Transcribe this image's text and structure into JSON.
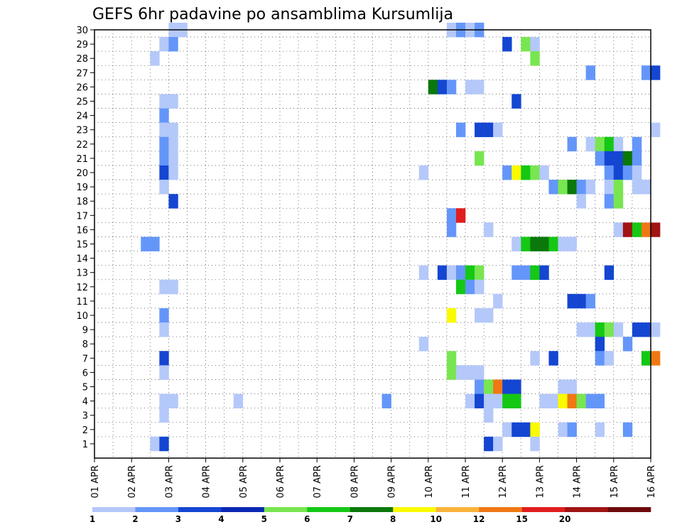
{
  "chart_data": {
    "type": "heatmap",
    "title": "GEFS 6hr padavine po ansamblima Kursumlija",
    "xlabel": "",
    "ylabel": "",
    "x_tick_labels": [
      "01 APR",
      "02 APR",
      "03 APR",
      "04 APR",
      "05 APR",
      "06 APR",
      "07 APR",
      "08 APR",
      "09 APR",
      "10 APR",
      "11 APR",
      "12 APR",
      "13 APR",
      "14 APR",
      "15 APR",
      "16 APR"
    ],
    "x_range_days": [
      1,
      16
    ],
    "x_step_days": 0.25,
    "y_range": [
      0,
      30
    ],
    "y_tick_labels": [
      1,
      2,
      3,
      4,
      5,
      6,
      7,
      8,
      9,
      10,
      11,
      12,
      13,
      14,
      15,
      16,
      17,
      18,
      19,
      20,
      21,
      22,
      23,
      24,
      25,
      26,
      27,
      28,
      29,
      30
    ],
    "grid": "dotted",
    "legend": {
      "position": "bottom",
      "labels": [
        "1",
        "2",
        "3",
        "4",
        "5",
        "6",
        "7",
        "8",
        "10",
        "12",
        "15",
        "20"
      ],
      "colors": [
        "#b4c8fa",
        "#6496fa",
        "#1446d2",
        "#0a28b4",
        "#78e650",
        "#14c814",
        "#0a780a",
        "#fafa00",
        "#fab43c",
        "#f07814",
        "#e11e1e",
        "#a01414",
        "#6e0a0a"
      ]
    },
    "cells": [
      [
        "03 APR 00",
        30,
        "c1"
      ],
      [
        "03 APR 06",
        30,
        "c1"
      ],
      [
        "10 APR 12",
        30,
        "c1"
      ],
      [
        "10 APR 18",
        30,
        "c2"
      ],
      [
        "11 APR 00",
        30,
        "c1"
      ],
      [
        "11 APR 06",
        30,
        "c2"
      ],
      [
        "02 APR 18",
        29,
        "c1"
      ],
      [
        "03 APR 00",
        29,
        "c2"
      ],
      [
        "12 APR 00",
        29,
        "c3"
      ],
      [
        "12 APR 12",
        29,
        "c5"
      ],
      [
        "12 APR 18",
        29,
        "c1"
      ],
      [
        "02 APR 12",
        28,
        "c1"
      ],
      [
        "12 APR 18",
        28,
        "c5"
      ],
      [
        "14 APR 06",
        27,
        "c2"
      ],
      [
        "15 APR 18",
        27,
        "c2"
      ],
      [
        "16 APR 00",
        27,
        "c3"
      ],
      [
        "10 APR 00",
        26,
        "c7"
      ],
      [
        "10 APR 06",
        26,
        "c3"
      ],
      [
        "10 APR 12",
        26,
        "c2"
      ],
      [
        "11 APR 00",
        26,
        "c1"
      ],
      [
        "11 APR 06",
        26,
        "c1"
      ],
      [
        "02 APR 18",
        25,
        "c1"
      ],
      [
        "03 APR 00",
        25,
        "c1"
      ],
      [
        "12 APR 06",
        25,
        "c3"
      ],
      [
        "02 APR 18",
        24,
        "c2"
      ],
      [
        "02 APR 18",
        23,
        "c1"
      ],
      [
        "03 APR 00",
        23,
        "c1"
      ],
      [
        "10 APR 18",
        23,
        "c2"
      ],
      [
        "11 APR 06",
        23,
        "c3"
      ],
      [
        "11 APR 12",
        23,
        "c3"
      ],
      [
        "11 APR 18",
        23,
        "c1"
      ],
      [
        "16 APR 00",
        23,
        "c1"
      ],
      [
        "02 APR 18",
        22,
        "c2"
      ],
      [
        "03 APR 00",
        22,
        "c1"
      ],
      [
        "13 APR 18",
        22,
        "c2"
      ],
      [
        "14 APR 06",
        22,
        "c1"
      ],
      [
        "14 APR 12",
        22,
        "c5"
      ],
      [
        "14 APR 18",
        22,
        "c6"
      ],
      [
        "15 APR 00",
        22,
        "c1"
      ],
      [
        "15 APR 12",
        22,
        "c2"
      ],
      [
        "02 APR 18",
        21,
        "c2"
      ],
      [
        "03 APR 00",
        21,
        "c1"
      ],
      [
        "11 APR 06",
        21,
        "c5"
      ],
      [
        "14 APR 12",
        21,
        "c2"
      ],
      [
        "14 APR 18",
        21,
        "c3"
      ],
      [
        "15 APR 00",
        21,
        "c3"
      ],
      [
        "15 APR 06",
        21,
        "c7"
      ],
      [
        "15 APR 12",
        21,
        "c2"
      ],
      [
        "02 APR 18",
        20,
        "c3"
      ],
      [
        "03 APR 00",
        20,
        "c1"
      ],
      [
        "09 APR 18",
        20,
        "c1"
      ],
      [
        "12 APR 00",
        20,
        "c2"
      ],
      [
        "12 APR 06",
        20,
        "c8"
      ],
      [
        "12 APR 12",
        20,
        "c6"
      ],
      [
        "12 APR 18",
        20,
        "c5"
      ],
      [
        "13 APR 00",
        20,
        "c1"
      ],
      [
        "14 APR 18",
        20,
        "c2"
      ],
      [
        "15 APR 00",
        20,
        "c3"
      ],
      [
        "15 APR 06",
        20,
        "c2"
      ],
      [
        "15 APR 12",
        20,
        "c1"
      ],
      [
        "02 APR 18",
        19,
        "c1"
      ],
      [
        "13 APR 06",
        19,
        "c2"
      ],
      [
        "13 APR 12",
        19,
        "c5"
      ],
      [
        "13 APR 18",
        19,
        "c7"
      ],
      [
        "14 APR 00",
        19,
        "c2"
      ],
      [
        "14 APR 06",
        19,
        "c1"
      ],
      [
        "14 APR 18",
        19,
        "c1"
      ],
      [
        "15 APR 00",
        19,
        "c5"
      ],
      [
        "15 APR 12",
        19,
        "c1"
      ],
      [
        "15 APR 18",
        19,
        "c1"
      ],
      [
        "03 APR 00",
        18,
        "c3"
      ],
      [
        "14 APR 00",
        18,
        "c1"
      ],
      [
        "14 APR 18",
        18,
        "c2"
      ],
      [
        "15 APR 00",
        18,
        "c5"
      ],
      [
        "10 APR 12",
        17,
        "c2"
      ],
      [
        "10 APR 18",
        17,
        "c11"
      ],
      [
        "10 APR 12",
        16,
        "c2"
      ],
      [
        "11 APR 12",
        16,
        "c1"
      ],
      [
        "15 APR 00",
        16,
        "c1"
      ],
      [
        "15 APR 06",
        16,
        "c12"
      ],
      [
        "15 APR 12",
        16,
        "c6"
      ],
      [
        "15 APR 18",
        16,
        "c10"
      ],
      [
        "16 APR 00",
        16,
        "c12"
      ],
      [
        "02 APR 06",
        15,
        "c2"
      ],
      [
        "02 APR 12",
        15,
        "c2"
      ],
      [
        "12 APR 06",
        15,
        "c1"
      ],
      [
        "12 APR 12",
        15,
        "c6"
      ],
      [
        "12 APR 18",
        15,
        "c7"
      ],
      [
        "13 APR 00",
        15,
        "c7"
      ],
      [
        "13 APR 06",
        15,
        "c6"
      ],
      [
        "13 APR 12",
        15,
        "c1"
      ],
      [
        "13 APR 18",
        15,
        "c1"
      ],
      [
        "09 APR 18",
        13,
        "c1"
      ],
      [
        "10 APR 06",
        13,
        "c3"
      ],
      [
        "10 APR 12",
        13,
        "c1"
      ],
      [
        "10 APR 18",
        13,
        "c2"
      ],
      [
        "11 APR 00",
        13,
        "c6"
      ],
      [
        "11 APR 06",
        13,
        "c5"
      ],
      [
        "12 APR 06",
        13,
        "c2"
      ],
      [
        "12 APR 12",
        13,
        "c2"
      ],
      [
        "12 APR 18",
        13,
        "c6"
      ],
      [
        "13 APR 00",
        13,
        "c3"
      ],
      [
        "14 APR 18",
        13,
        "c3"
      ],
      [
        "02 APR 18",
        12,
        "c1"
      ],
      [
        "03 APR 00",
        12,
        "c1"
      ],
      [
        "10 APR 18",
        12,
        "c6"
      ],
      [
        "11 APR 00",
        12,
        "c2"
      ],
      [
        "11 APR 06",
        12,
        "c1"
      ],
      [
        "11 APR 18",
        11,
        "c1"
      ],
      [
        "13 APR 18",
        11,
        "c3"
      ],
      [
        "14 APR 00",
        11,
        "c3"
      ],
      [
        "14 APR 06",
        11,
        "c2"
      ],
      [
        "02 APR 18",
        10,
        "c2"
      ],
      [
        "10 APR 12",
        10,
        "c8"
      ],
      [
        "11 APR 06",
        10,
        "c1"
      ],
      [
        "11 APR 12",
        10,
        "c1"
      ],
      [
        "02 APR 18",
        9,
        "c1"
      ],
      [
        "14 APR 00",
        9,
        "c1"
      ],
      [
        "14 APR 06",
        9,
        "c1"
      ],
      [
        "14 APR 12",
        9,
        "c6"
      ],
      [
        "14 APR 18",
        9,
        "c5"
      ],
      [
        "15 APR 00",
        9,
        "c1"
      ],
      [
        "15 APR 12",
        9,
        "c3"
      ],
      [
        "15 APR 18",
        9,
        "c3"
      ],
      [
        "16 APR 00",
        9,
        "c1"
      ],
      [
        "09 APR 18",
        8,
        "c1"
      ],
      [
        "14 APR 12",
        8,
        "c3"
      ],
      [
        "15 APR 06",
        8,
        "c2"
      ],
      [
        "02 APR 18",
        7,
        "c3"
      ],
      [
        "10 APR 12",
        7,
        "c5"
      ],
      [
        "12 APR 18",
        7,
        "c1"
      ],
      [
        "13 APR 06",
        7,
        "c3"
      ],
      [
        "14 APR 12",
        7,
        "c2"
      ],
      [
        "14 APR 18",
        7,
        "c1"
      ],
      [
        "15 APR 18",
        7,
        "c6"
      ],
      [
        "16 APR 00",
        7,
        "c10"
      ],
      [
        "02 APR 18",
        6,
        "c1"
      ],
      [
        "10 APR 12",
        6,
        "c5"
      ],
      [
        "10 APR 18",
        6,
        "c1"
      ],
      [
        "11 APR 00",
        6,
        "c1"
      ],
      [
        "11 APR 06",
        6,
        "c1"
      ],
      [
        "11 APR 06",
        5,
        "c2"
      ],
      [
        "11 APR 12",
        5,
        "c5"
      ],
      [
        "11 APR 18",
        5,
        "c10"
      ],
      [
        "12 APR 00",
        5,
        "c3"
      ],
      [
        "12 APR 06",
        5,
        "c3"
      ],
      [
        "13 APR 12",
        5,
        "c1"
      ],
      [
        "13 APR 18",
        5,
        "c1"
      ],
      [
        "02 APR 18",
        4,
        "c1"
      ],
      [
        "03 APR 00",
        4,
        "c1"
      ],
      [
        "04 APR 18",
        4,
        "c1"
      ],
      [
        "08 APR 18",
        4,
        "c2"
      ],
      [
        "11 APR 00",
        4,
        "c1"
      ],
      [
        "11 APR 06",
        4,
        "c3"
      ],
      [
        "11 APR 12",
        4,
        "c1"
      ],
      [
        "11 APR 18",
        4,
        "c1"
      ],
      [
        "12 APR 00",
        4,
        "c6"
      ],
      [
        "12 APR 06",
        4,
        "c6"
      ],
      [
        "13 APR 00",
        4,
        "c1"
      ],
      [
        "13 APR 06",
        4,
        "c1"
      ],
      [
        "13 APR 12",
        4,
        "c8"
      ],
      [
        "13 APR 18",
        4,
        "c10"
      ],
      [
        "14 APR 00",
        4,
        "c5"
      ],
      [
        "14 APR 06",
        4,
        "c2"
      ],
      [
        "14 APR 12",
        4,
        "c2"
      ],
      [
        "02 APR 18",
        3,
        "c1"
      ],
      [
        "11 APR 12",
        3,
        "c1"
      ],
      [
        "12 APR 00",
        2,
        "c1"
      ],
      [
        "12 APR 06",
        2,
        "c3"
      ],
      [
        "12 APR 12",
        2,
        "c3"
      ],
      [
        "12 APR 18",
        2,
        "c8"
      ],
      [
        "13 APR 12",
        2,
        "c1"
      ],
      [
        "13 APR 18",
        2,
        "c2"
      ],
      [
        "14 APR 12",
        2,
        "c1"
      ],
      [
        "15 APR 06",
        2,
        "c2"
      ],
      [
        "02 APR 12",
        1,
        "c1"
      ],
      [
        "02 APR 18",
        1,
        "c3"
      ],
      [
        "11 APR 12",
        1,
        "c3"
      ],
      [
        "11 APR 18",
        1,
        "c1"
      ],
      [
        "12 APR 18",
        1,
        "c1"
      ]
    ]
  }
}
